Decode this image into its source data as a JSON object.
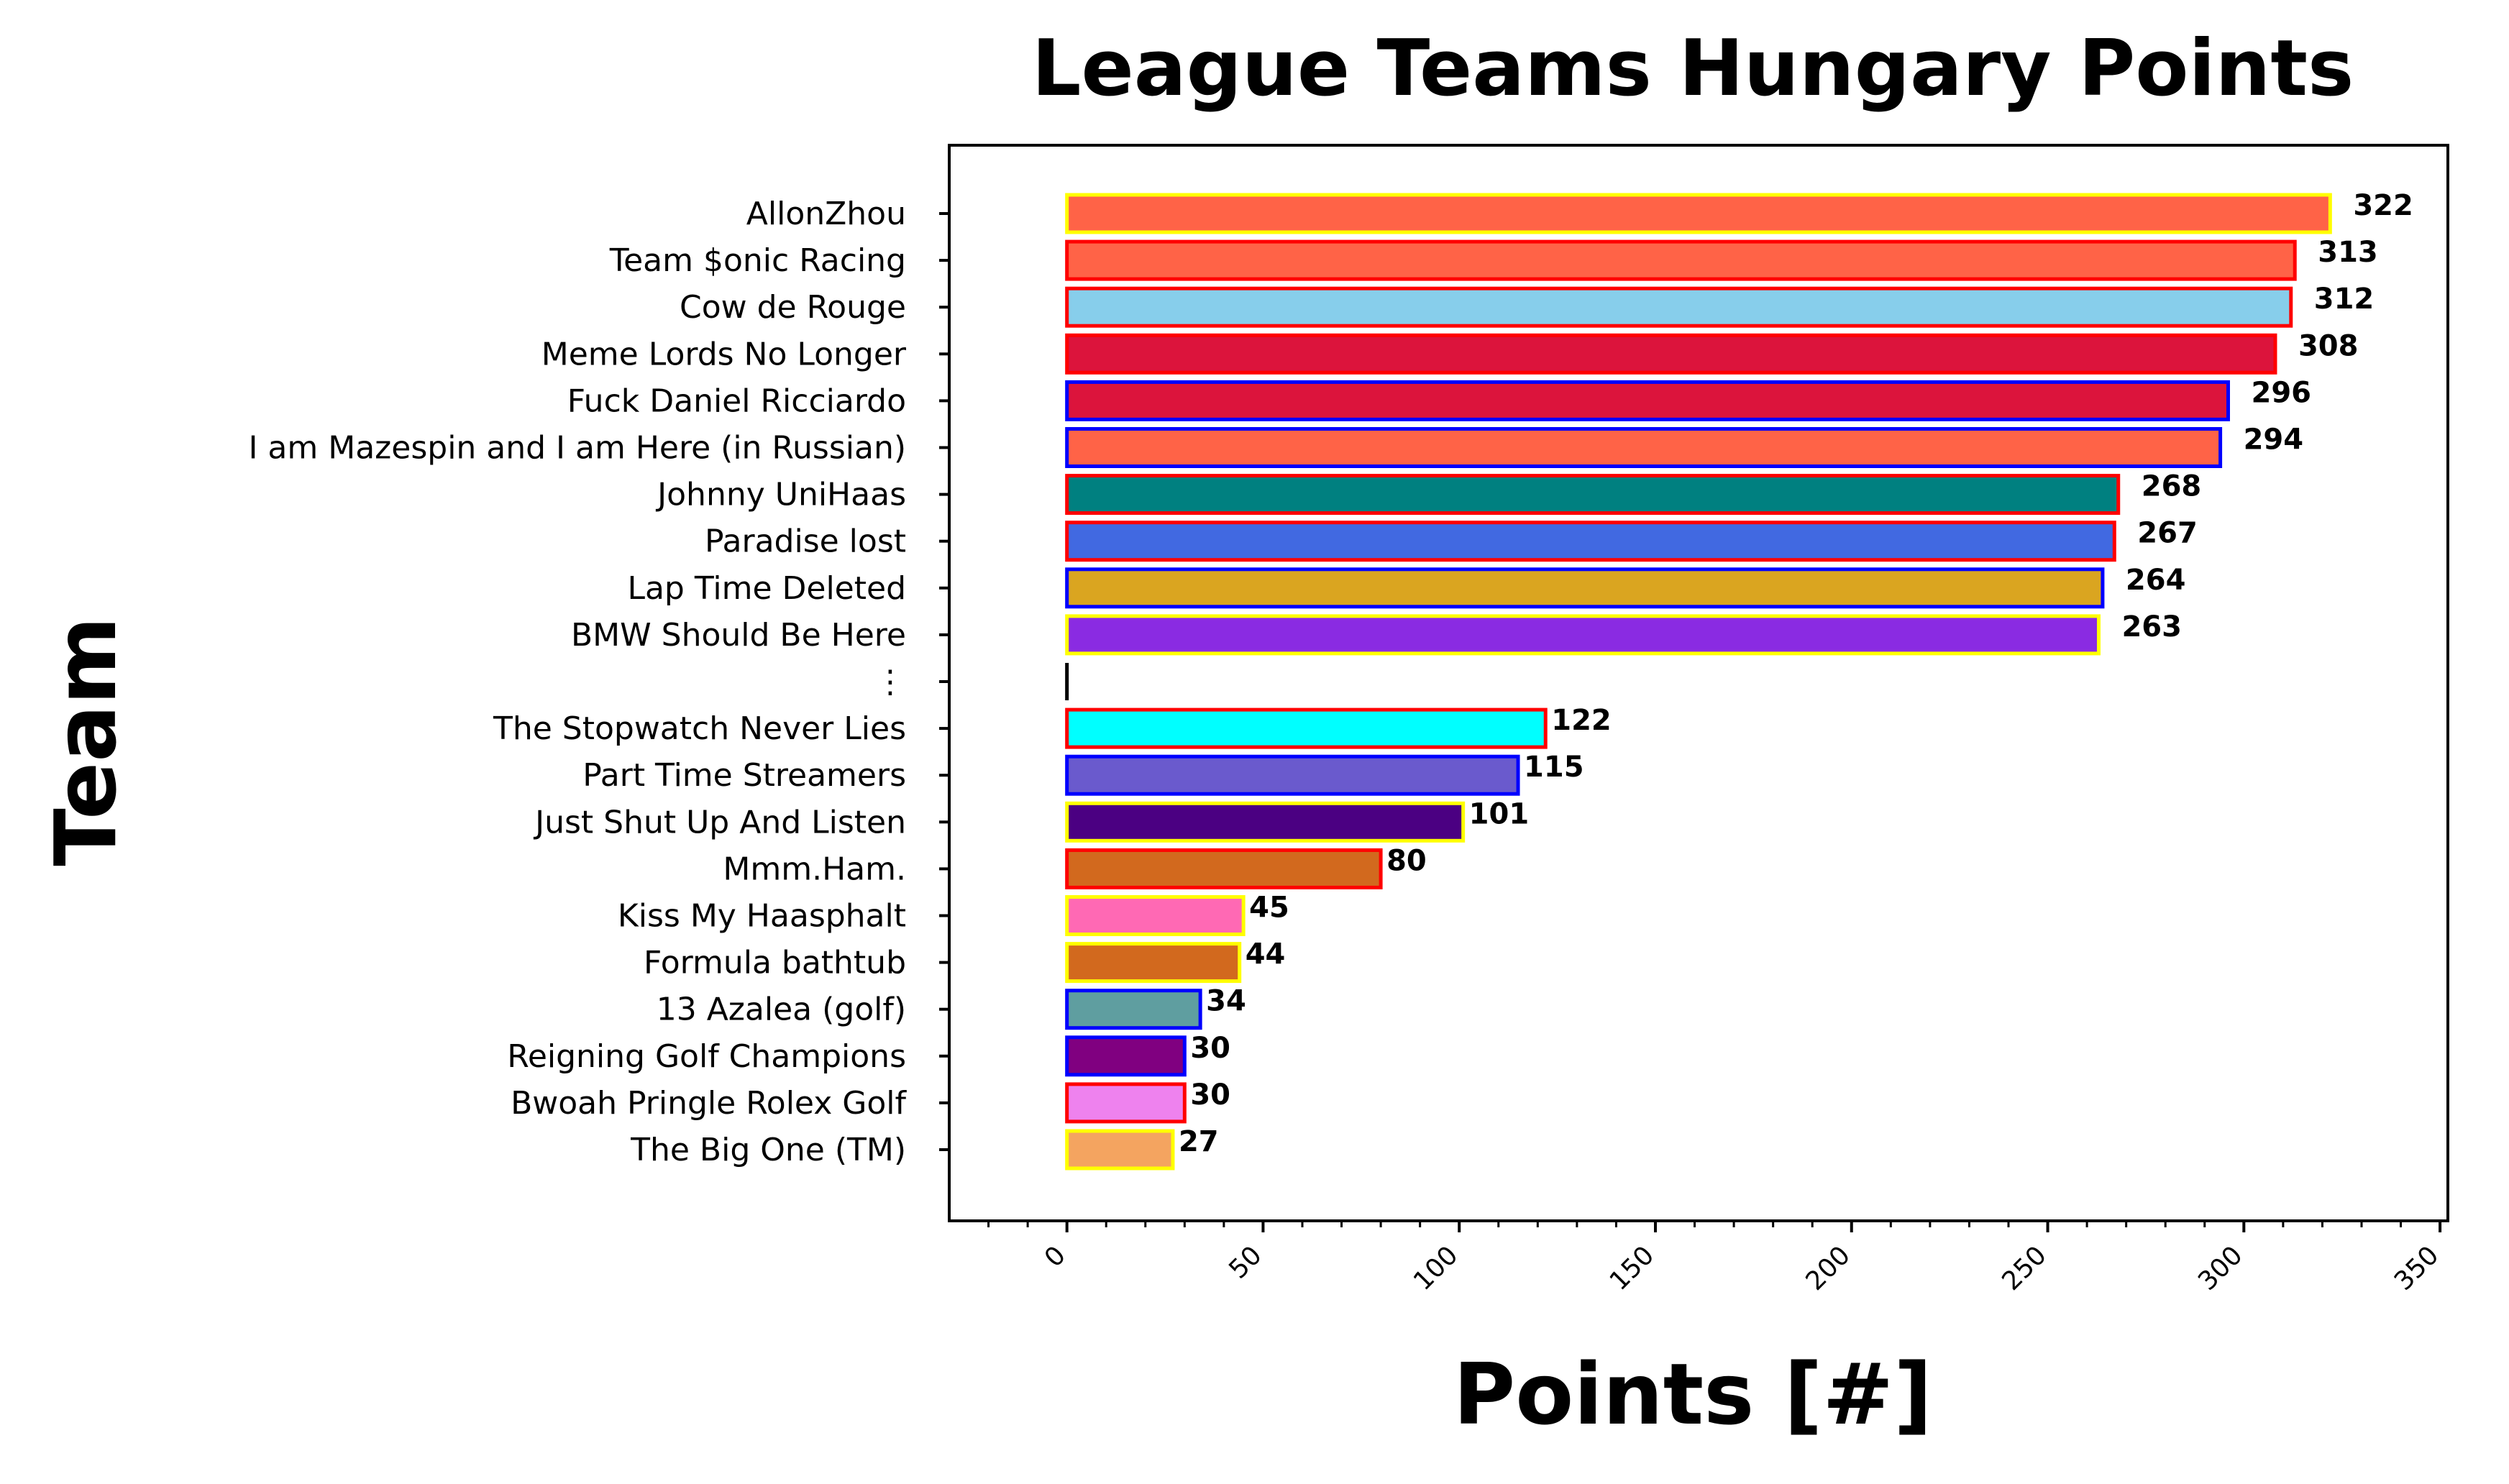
{
  "chart_data": {
    "type": "bar",
    "orientation": "horizontal",
    "title": "League Teams Hungary Points",
    "xlabel": "Points [#]",
    "ylabel": "Team",
    "xlim": [
      -30,
      352
    ],
    "xticks": [
      0,
      50,
      100,
      150,
      200,
      250,
      300,
      350
    ],
    "grid": false,
    "legend": "none",
    "categories": [
      "AllonZhou",
      "Team $onic Racing",
      "Cow de Rouge",
      "Meme Lords No Longer",
      "Fuck Daniel Ricciardo",
      "I am Mazespin and I am Here (in Russian)",
      "Johnny UniHaas",
      "Paradise lost",
      "Lap Time Deleted",
      "BMW Should Be Here",
      "⋮",
      "The Stopwatch Never Lies",
      "Part Time Streamers",
      "Just Shut Up And Listen",
      "Mmm.Ham.",
      "Kiss My Haasphalt",
      "Formula bathtub",
      "13 Azalea (golf)",
      "Reigning Golf Champions",
      "Bwoah Pringle Rolex Golf",
      "The Big One (TM)"
    ],
    "values": [
      322,
      313,
      312,
      308,
      296,
      294,
      268,
      267,
      264,
      263,
      0,
      122,
      115,
      101,
      80,
      45,
      44,
      34,
      30,
      30,
      27
    ],
    "value_labels": [
      "322",
      "313",
      "312",
      "308",
      "296",
      "294",
      "268",
      "267",
      "264",
      "263",
      "",
      "122",
      "115",
      "101",
      "80",
      "45",
      "44",
      "34",
      "30",
      "30",
      "27"
    ],
    "fill_colors": [
      "#ff6347",
      "#ff6347",
      "#87ceeb",
      "#dc143c",
      "#dc143c",
      "#ff6347",
      "#008080",
      "#4169e1",
      "#daa520",
      "#8a2be2",
      "#000000",
      "#00ffff",
      "#6a5acd",
      "#4b0082",
      "#d2691e",
      "#ff69b4",
      "#d2691e",
      "#5f9ea0",
      "#800080",
      "#ee82ee",
      "#f4a460"
    ],
    "edge_colors": [
      "#ffff00",
      "#ff0000",
      "#ff0000",
      "#ff0000",
      "#0000ff",
      "#0000ff",
      "#ff0000",
      "#ff0000",
      "#0000ff",
      "#ffff00",
      "#000000",
      "#ff0000",
      "#0000ff",
      "#ffff00",
      "#ff0000",
      "#ffff00",
      "#ffff00",
      "#0000ff",
      "#0000ff",
      "#ff0000",
      "#ffff00"
    ]
  }
}
